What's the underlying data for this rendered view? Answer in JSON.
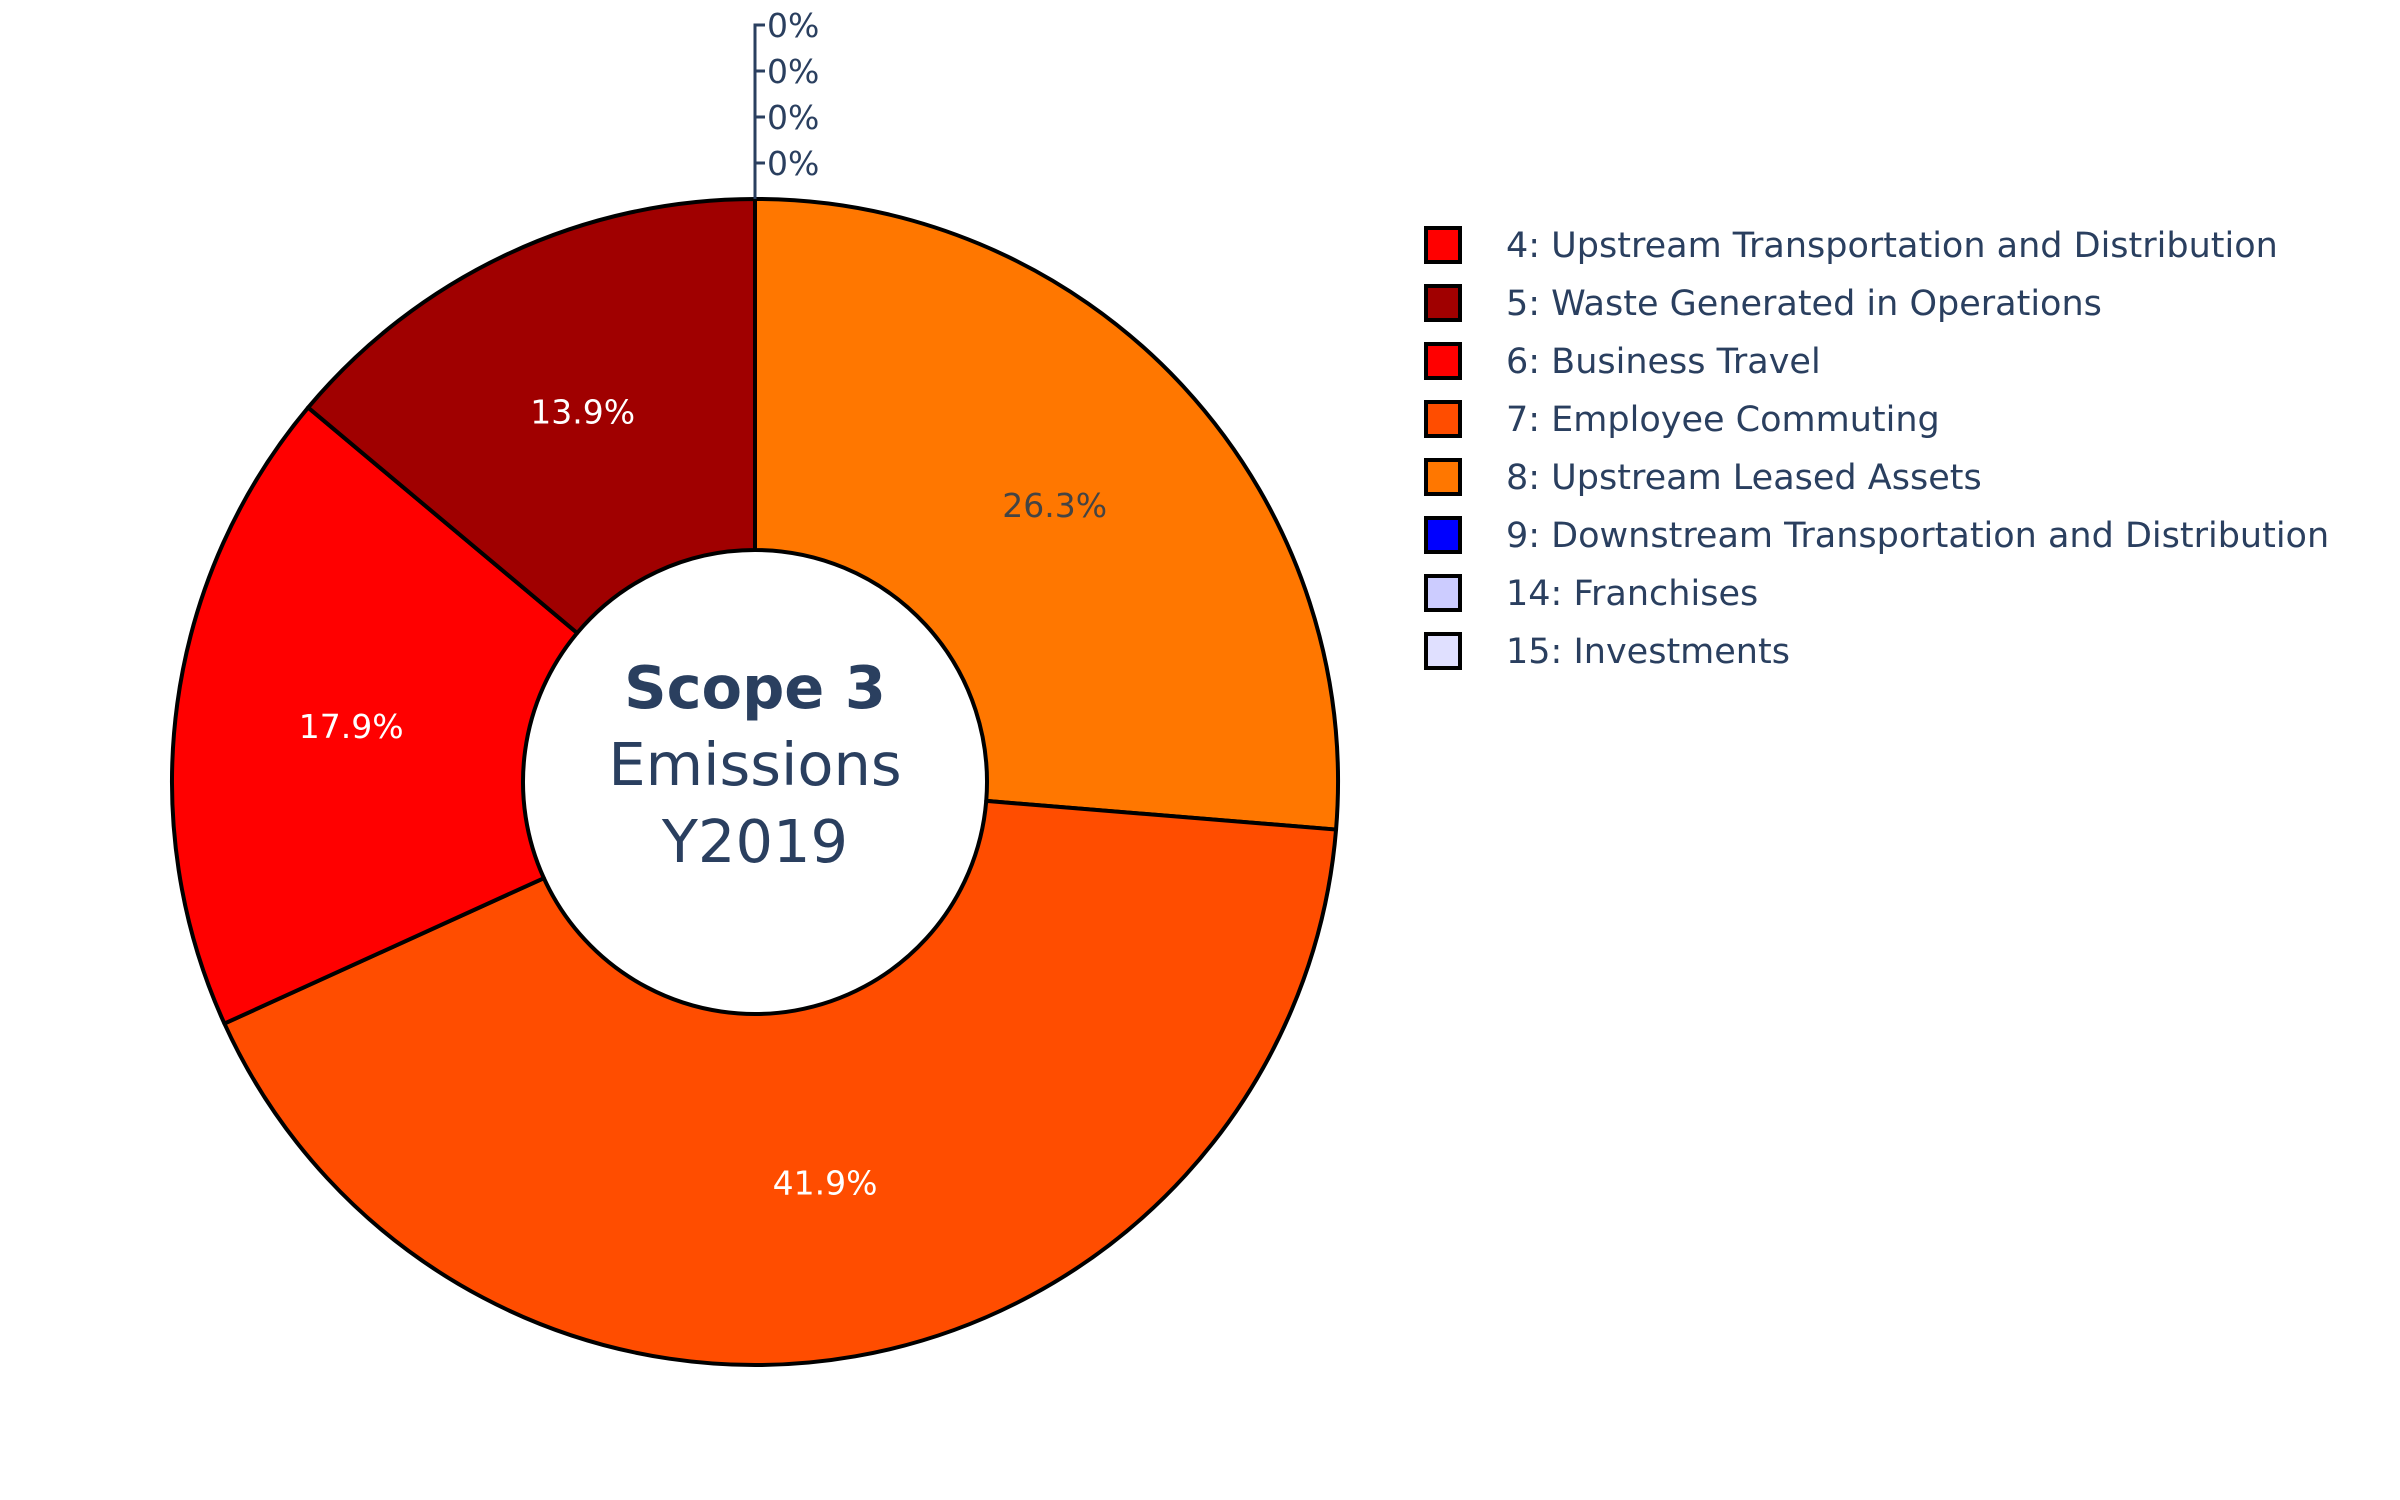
{
  "chart_data": {
    "type": "pie",
    "hole": true,
    "center_title": {
      "bold": "Scope 3",
      "line2": "Emissions",
      "line3": "Y2019"
    },
    "slices": [
      {
        "label": "8: Upstream Leased Assets",
        "value": 26.3,
        "text": "26.3%",
        "color": "#ff7700",
        "text_color": "#444444"
      },
      {
        "label": "7: Employee Commuting",
        "value": 41.9,
        "text": "41.9%",
        "color": "#ff4d00",
        "text_color": "#ffffff"
      },
      {
        "label": "6: Business Travel",
        "value": 17.9,
        "text": "17.9%",
        "color": "#ff0000",
        "text_color": "#ffffff"
      },
      {
        "label": "5: Waste Generated in Operations",
        "value": 13.9,
        "text": "13.9%",
        "color": "#a00000",
        "text_color": "#ffffff"
      },
      {
        "label": "4: Upstream Transportation and Distribution",
        "value": 0,
        "text": "0%",
        "color": "#ff0000",
        "text_color": "#2a3f5f"
      },
      {
        "label": "9: Downstream Transportation and Distribution",
        "value": 0,
        "text": "0%",
        "color": "#0000ff",
        "text_color": "#2a3f5f"
      },
      {
        "label": "14: Franchises",
        "value": 0,
        "text": "0%",
        "color": "#ccccff",
        "text_color": "#2a3f5f"
      },
      {
        "label": "15: Investments",
        "value": 0,
        "text": "0%",
        "color": "#e0e0ff",
        "text_color": "#2a3f5f"
      }
    ],
    "legend": [
      {
        "label": "4: Upstream Transportation and Distribution",
        "color": "#ff0000"
      },
      {
        "label": "5: Waste Generated in Operations",
        "color": "#a00000"
      },
      {
        "label": "6: Business Travel",
        "color": "#ff0000"
      },
      {
        "label": "7: Employee Commuting",
        "color": "#ff4d00"
      },
      {
        "label": "8: Upstream Leased Assets",
        "color": "#ff7700"
      },
      {
        "label": "9: Downstream Transportation and Distribution",
        "color": "#0000ff"
      },
      {
        "label": "14: Franchises",
        "color": "#ccccff"
      },
      {
        "label": "15: Investments",
        "color": "#e0e0ff"
      }
    ],
    "legend_placement": "right"
  }
}
